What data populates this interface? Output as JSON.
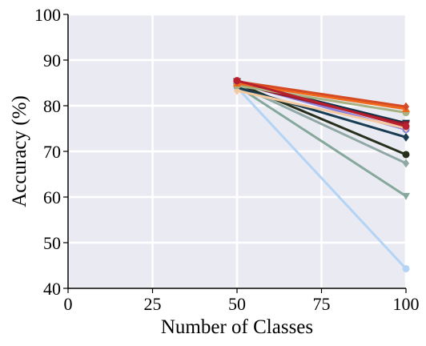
{
  "chart_data": {
    "type": "line",
    "title": "",
    "xlabel": "Number of Classes",
    "ylabel": "Accuracy (%)",
    "xlim": [
      0,
      100
    ],
    "ylim": [
      40,
      100
    ],
    "xticks": [
      "0",
      "25",
      "50",
      "75",
      "100"
    ],
    "yticks": [
      "40",
      "50",
      "60",
      "70",
      "80",
      "90",
      "100"
    ],
    "grid": true,
    "background": "#EAEAF2",
    "series": [
      {
        "x": [
          50,
          100
        ],
        "y": [
          84.0,
          44.3
        ],
        "color": "#B3D4F5",
        "marker": "circle"
      },
      {
        "x": [
          50,
          100
        ],
        "y": [
          84.3,
          60.2
        ],
        "color": "#86A89C",
        "marker": "triangle-down"
      },
      {
        "x": [
          50,
          100
        ],
        "y": [
          84.6,
          67.4
        ],
        "color": "#8FA8A3",
        "marker": "diamond"
      },
      {
        "x": [
          50,
          100
        ],
        "y": [
          84.9,
          69.3
        ],
        "color": "#26301C",
        "marker": "circle"
      },
      {
        "x": [
          50,
          100
        ],
        "y": [
          84.0,
          73.1
        ],
        "color": "#183D52",
        "marker": "diamond"
      },
      {
        "x": [
          50,
          100
        ],
        "y": [
          85.3,
          76.2
        ],
        "color": "#0D3347",
        "marker": "triangle-down"
      },
      {
        "x": [
          50,
          100
        ],
        "y": [
          85.0,
          74.8
        ],
        "color": "#8A83DE",
        "marker": "circle"
      },
      {
        "x": [
          50,
          100
        ],
        "y": [
          83.3,
          75.1
        ],
        "color": "#F5C9A0",
        "marker": "diamond"
      },
      {
        "x": [
          50,
          100
        ],
        "y": [
          84.8,
          75.9
        ],
        "color": "#9A1A2E",
        "marker": "triangle-down"
      },
      {
        "x": [
          50,
          100
        ],
        "y": [
          84.4,
          78.5
        ],
        "color": "#A6B283",
        "marker": "circle"
      },
      {
        "x": [
          50,
          100
        ],
        "y": [
          84.9,
          79.3
        ],
        "color": "#EF6A1D",
        "marker": "triangle-up"
      },
      {
        "x": [
          50,
          100
        ],
        "y": [
          85.3,
          79.8
        ],
        "color": "#D54B26",
        "marker": "diamond"
      },
      {
        "x": [
          50,
          100
        ],
        "y": [
          85.5,
          75.5
        ],
        "color": "#B8202E",
        "marker": "circle"
      }
    ]
  }
}
